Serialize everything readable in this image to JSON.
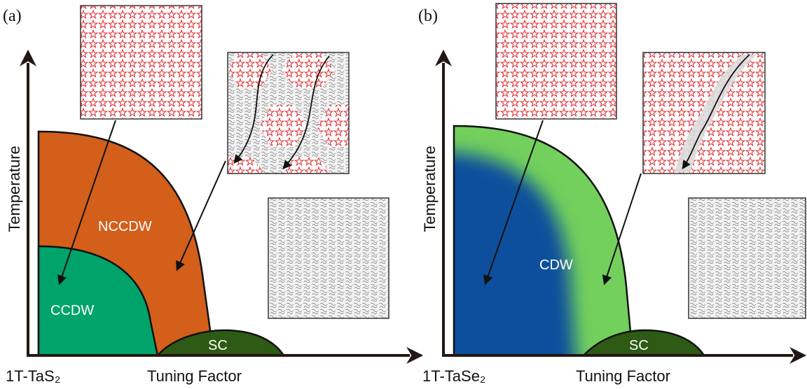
{
  "panels": [
    {
      "label": "(a)",
      "y_axis": "Temperature",
      "x_axis": "Tuning Factor",
      "material": "1T-TaS₂",
      "phases": [
        "NCCDW",
        "CCDW",
        "SC"
      ]
    },
    {
      "label": "(b)",
      "y_axis": "Temperature",
      "x_axis": "Tuning Factor",
      "material": "1T-TaSe₂",
      "phases": [
        "CDW",
        "SC"
      ]
    }
  ]
}
